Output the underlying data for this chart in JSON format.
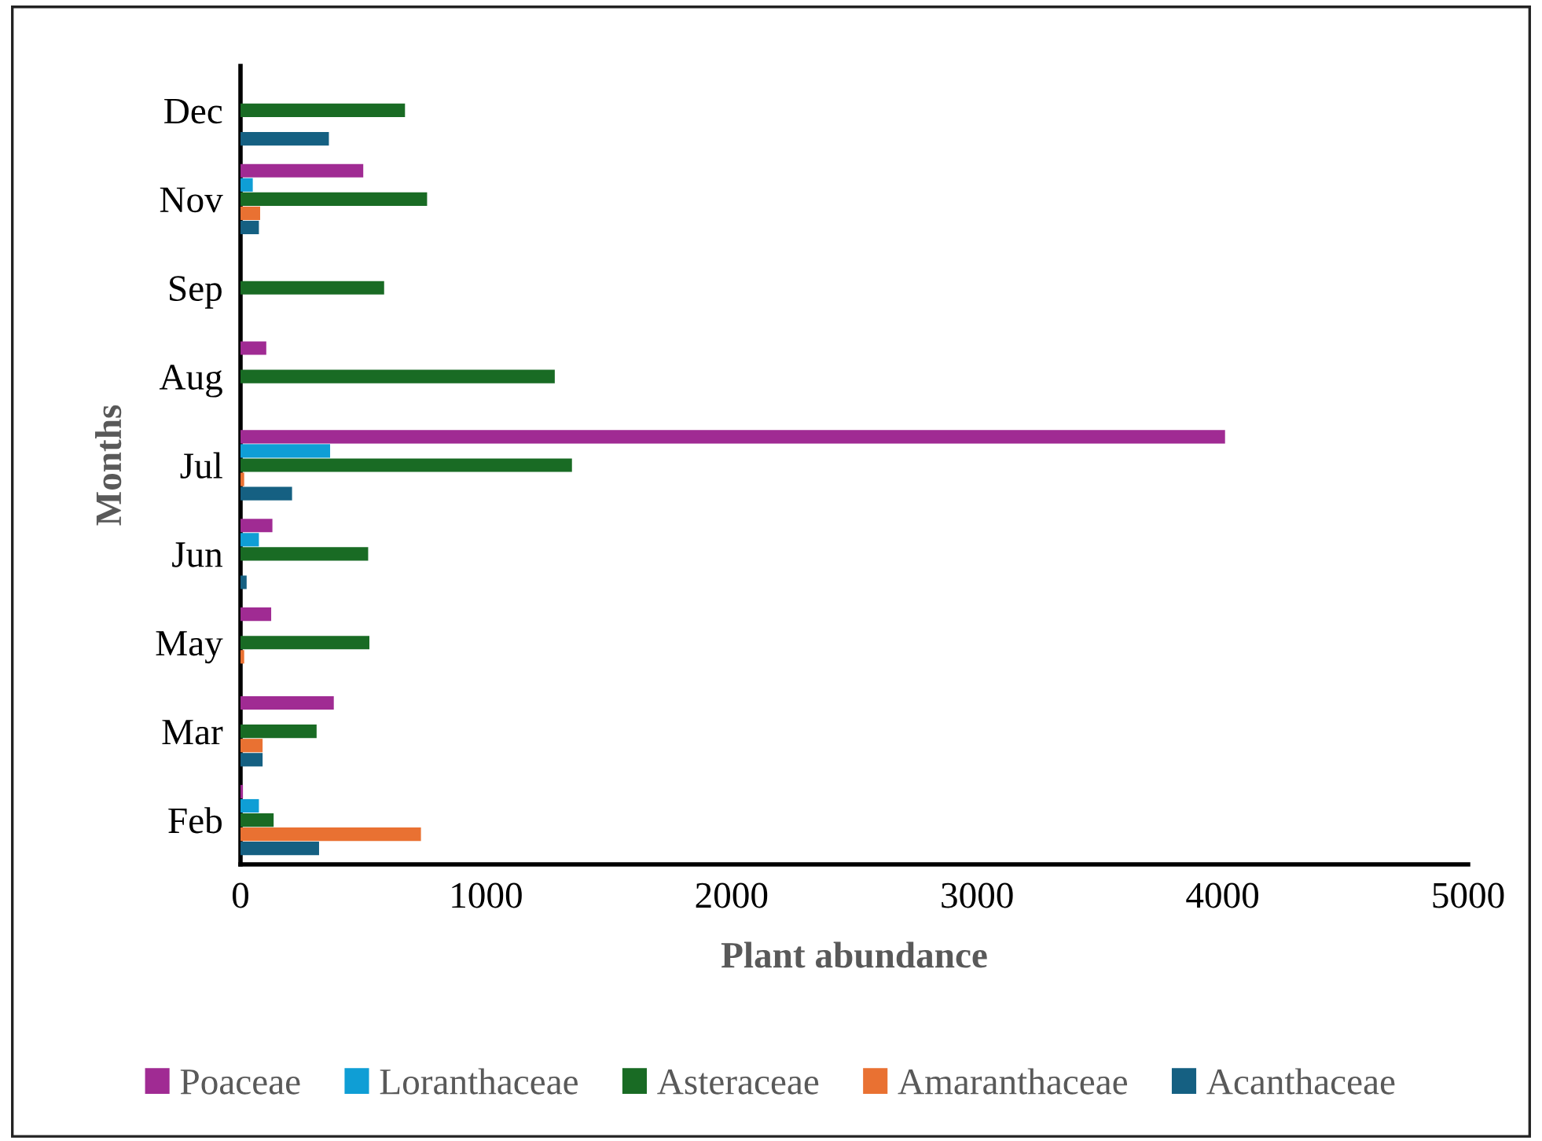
{
  "chart_data": {
    "type": "bar",
    "orientation": "horizontal",
    "xlabel": "Plant abundance",
    "ylabel": "Months",
    "categories": [
      "Dec",
      "Nov",
      "Sep",
      "Aug",
      "Jul",
      "Jun",
      "May",
      "Mar",
      "Feb"
    ],
    "series": [
      {
        "name": "Poaceae",
        "color": "#a02b93",
        "values": [
          null,
          500,
          null,
          105,
          4010,
          130,
          125,
          380,
          10
        ]
      },
      {
        "name": "Loranthaceae",
        "color": "#0f9ed5",
        "values": [
          null,
          50,
          null,
          null,
          365,
          75,
          null,
          null,
          75
        ]
      },
      {
        "name": "Asteraceae",
        "color": "#196b24",
        "values": [
          670,
          760,
          585,
          1280,
          1350,
          520,
          525,
          310,
          135
        ]
      },
      {
        "name": "Amaranthaceae",
        "color": "#e97132",
        "values": [
          null,
          80,
          null,
          null,
          15,
          null,
          15,
          90,
          735
        ]
      },
      {
        "name": "Acanthaceae",
        "color": "#156082",
        "values": [
          360,
          75,
          null,
          null,
          210,
          25,
          null,
          90,
          320
        ]
      }
    ],
    "xlim": [
      0,
      5000
    ],
    "xticks": [
      0,
      1000,
      2000,
      3000,
      4000,
      5000
    ],
    "grid": false,
    "legend": "bottom"
  }
}
